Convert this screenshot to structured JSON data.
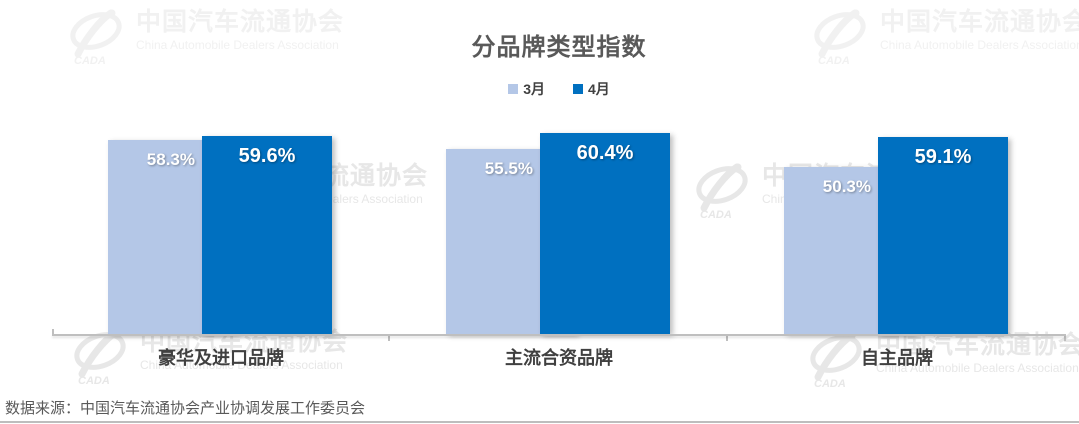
{
  "header": {
    "title": "分品牌类型指数",
    "legend": [
      {
        "label": "3月",
        "color": "#B4C7E7"
      },
      {
        "label": "4月",
        "color": "#0070C0"
      }
    ]
  },
  "chart_data": {
    "type": "bar",
    "title": "分品牌类型指数",
    "categories": [
      "豪华及进口品牌",
      "主流合资品牌",
      "自主品牌"
    ],
    "series": [
      {
        "name": "3月",
        "color": "#B4C7E7",
        "values": [
          58.3,
          55.5,
          50.3
        ]
      },
      {
        "name": "4月",
        "color": "#0070C0",
        "values": [
          59.6,
          60.4,
          59.1
        ]
      }
    ],
    "data_labels": [
      "58.3%",
      "59.6%",
      "55.5%",
      "60.4%",
      "50.3%",
      "59.1%"
    ],
    "value_suffix": "%",
    "ylim": [
      0,
      62
    ],
    "grid": false,
    "legend_position": "top",
    "xlabel": "",
    "ylabel": ""
  },
  "watermark": {
    "logo_text": "CADA",
    "cn": "中国汽车流通协会",
    "en": "China Automobile Dealers Association",
    "color_light": "#F1F1F1",
    "color_mid": "#E7E7E7"
  },
  "footer": {
    "source": "数据来源：中国汽车流通协会产业协调发展工作委员会"
  },
  "colors": {
    "title_text": "#595959",
    "category_text": "#404040",
    "value_label_text": "#FFFFFF",
    "axis_line": "#BFBFBF",
    "source_text": "#595959"
  }
}
